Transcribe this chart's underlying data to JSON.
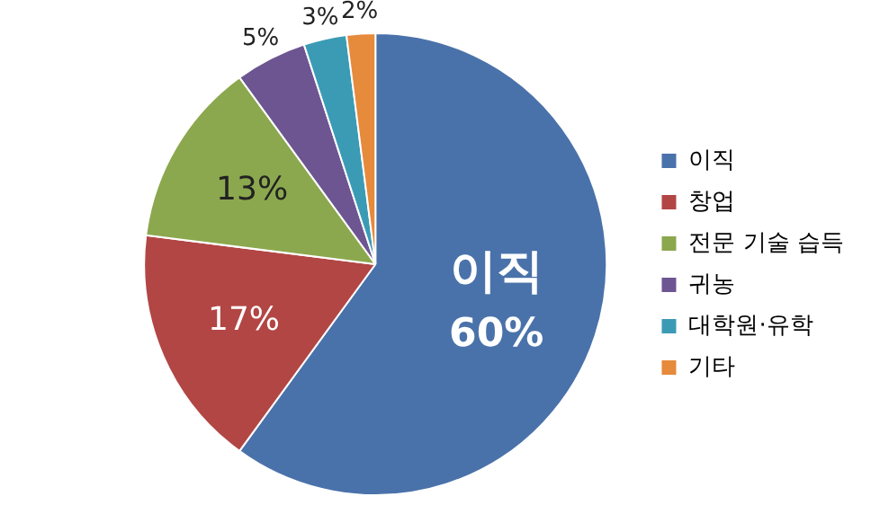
{
  "chart_data": {
    "type": "pie",
    "categories": [
      "이직",
      "창업",
      "전문 기술 습득",
      "귀농",
      "대학원·유학",
      "기타"
    ],
    "values": [
      60,
      17,
      13,
      5,
      3,
      2
    ],
    "colors": [
      "#4a72aa",
      "#b24644",
      "#8ba84e",
      "#6d5592",
      "#3b9bb5",
      "#e68a3c"
    ],
    "value_labels": [
      "60%",
      "17%",
      "13%",
      "5%",
      "3%",
      "2%"
    ],
    "annotations": [
      {
        "text": "이직",
        "x": "이직"
      }
    ],
    "legend": "right"
  }
}
